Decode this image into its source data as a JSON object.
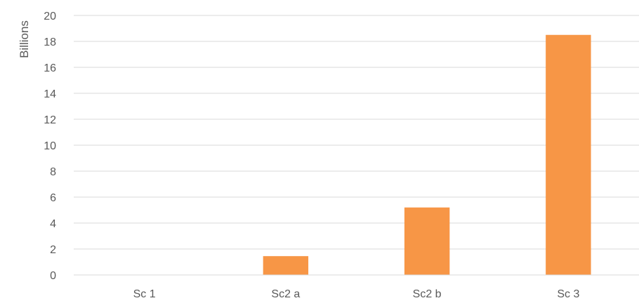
{
  "chart_data": {
    "type": "bar",
    "title": "",
    "xlabel": "",
    "ylabel": "Billions",
    "categories": [
      "Sc 1",
      "Sc2 a",
      "Sc2 b",
      "Sc 3"
    ],
    "values": [
      0,
      1.45,
      5.2,
      18.5
    ],
    "ylim": [
      0,
      20
    ],
    "yticks": [
      0,
      2,
      4,
      6,
      8,
      10,
      12,
      14,
      16,
      18,
      20
    ],
    "grid": true,
    "legend": "none",
    "colors": {
      "bar": "#F79646",
      "grid": "#D9D9D9",
      "text": "#595959"
    }
  }
}
